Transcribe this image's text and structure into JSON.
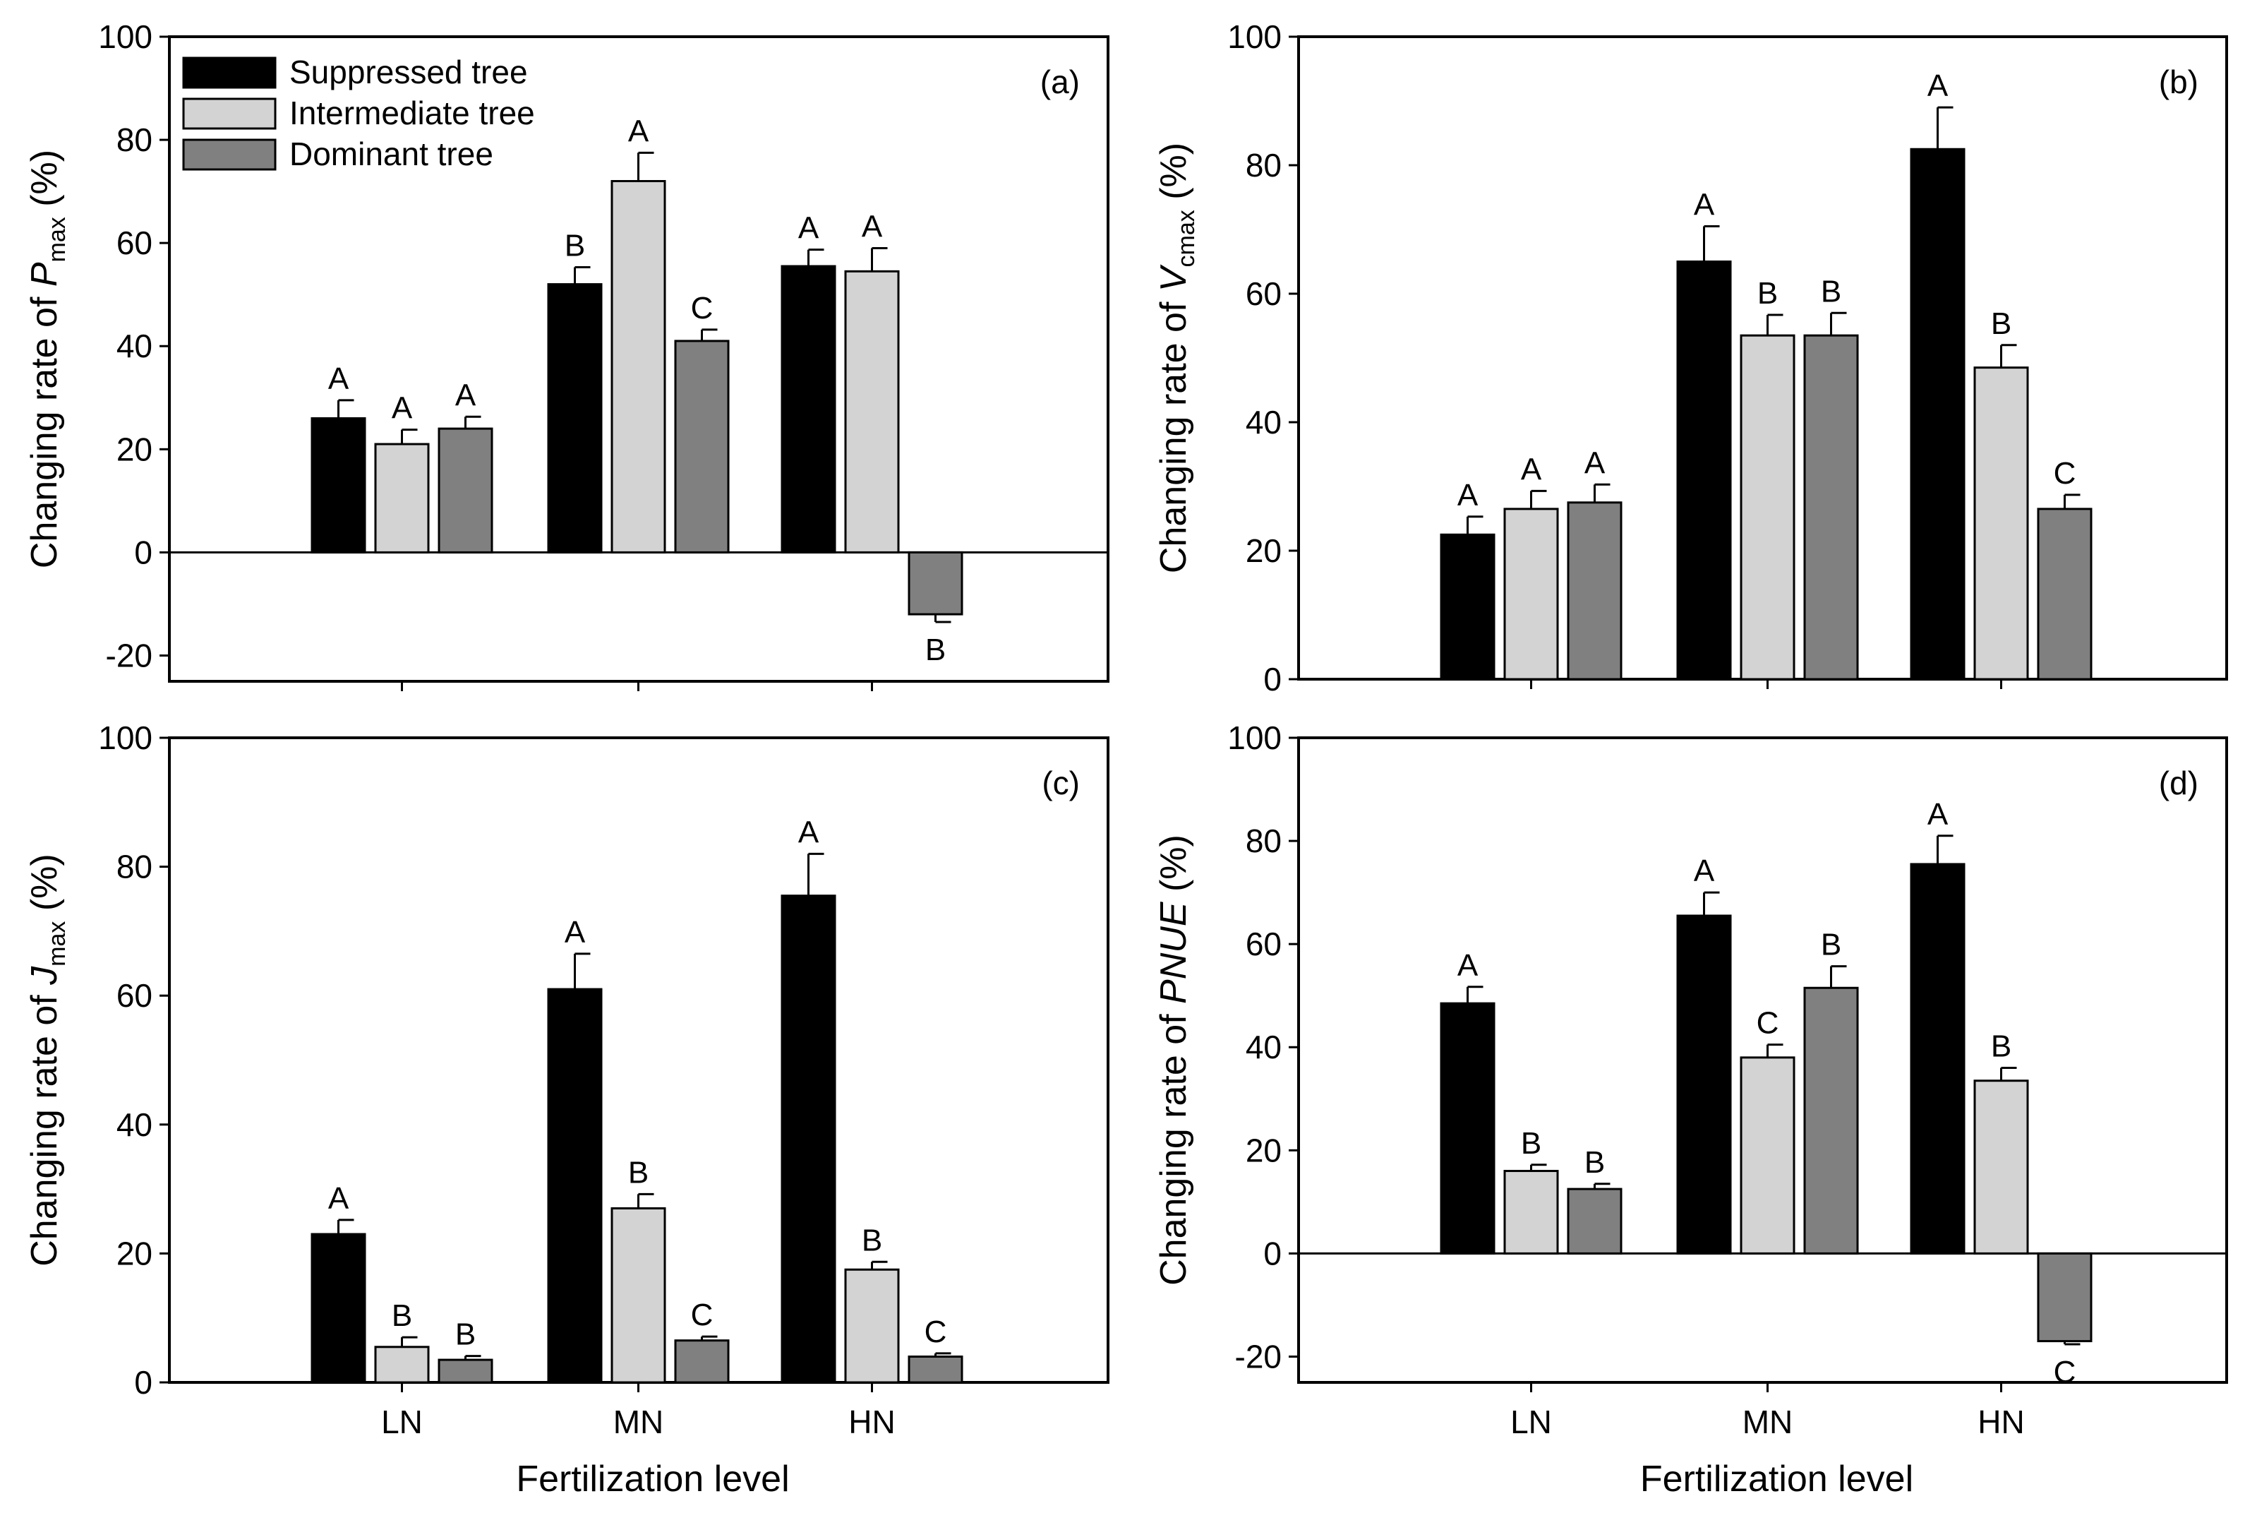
{
  "figure": {
    "x_axis_label": "Fertilization level",
    "legend": [
      {
        "name": "Suppressed tree",
        "color": "#000000"
      },
      {
        "name": "Intermediate tree",
        "color": "#d3d3d3"
      },
      {
        "name": "Dominant tree",
        "color": "#808080"
      }
    ]
  },
  "chart_data": [
    {
      "type": "bar",
      "panel": "(a)",
      "ylabel_prefix": "Changing rate of ",
      "ylabel_var": "P",
      "ylabel_sub": "max",
      "ylabel_suffix": " (%)",
      "categories": [
        "LN",
        "MN",
        "HN"
      ],
      "ylim": [
        -25,
        100
      ],
      "yticks": [
        -20,
        0,
        20,
        40,
        60,
        80,
        100
      ],
      "show_xtick_labels": false,
      "series": [
        {
          "name": "Suppressed tree",
          "values": [
            26,
            52,
            55.5
          ],
          "errors": [
            3.5,
            3.3,
            3.2
          ],
          "letters": [
            "A",
            "B",
            "A"
          ]
        },
        {
          "name": "Intermediate tree",
          "values": [
            21,
            72,
            54.5
          ],
          "errors": [
            2.8,
            5.5,
            4.5
          ],
          "letters": [
            "A",
            "A",
            "A"
          ]
        },
        {
          "name": "Dominant tree",
          "values": [
            24,
            41,
            -12
          ],
          "errors": [
            2.3,
            2.2,
            1.5
          ],
          "letters": [
            "A",
            "C",
            "B"
          ]
        }
      ]
    },
    {
      "type": "bar",
      "panel": "(b)",
      "ylabel_prefix": "Changing rate of ",
      "ylabel_var": "V",
      "ylabel_sub": "cmax",
      "ylabel_suffix": " (%)",
      "categories": [
        "LN",
        "MN",
        "HN"
      ],
      "ylim": [
        0,
        100
      ],
      "yticks": [
        0,
        20,
        40,
        60,
        80,
        100
      ],
      "show_xtick_labels": false,
      "series": [
        {
          "name": "Suppressed tree",
          "values": [
            22.5,
            65,
            82.5
          ],
          "errors": [
            2.8,
            5.5,
            6.5
          ],
          "letters": [
            "A",
            "A",
            "A"
          ]
        },
        {
          "name": "Intermediate tree",
          "values": [
            26.5,
            53.5,
            48.5
          ],
          "errors": [
            2.8,
            3.2,
            3.5
          ],
          "letters": [
            "A",
            "B",
            "B"
          ]
        },
        {
          "name": "Dominant tree",
          "values": [
            27.5,
            53.5,
            26.5
          ],
          "errors": [
            2.8,
            3.5,
            2.2
          ],
          "letters": [
            "A",
            "B",
            "C"
          ]
        }
      ]
    },
    {
      "type": "bar",
      "panel": "(c)",
      "ylabel_prefix": "Changing rate of ",
      "ylabel_var": "J",
      "ylabel_sub": "max",
      "ylabel_suffix": " (%)",
      "categories": [
        "LN",
        "MN",
        "HN"
      ],
      "ylim": [
        0,
        100
      ],
      "yticks": [
        0,
        20,
        40,
        60,
        80,
        100
      ],
      "show_xtick_labels": true,
      "series": [
        {
          "name": "Suppressed tree",
          "values": [
            23,
            61,
            75.5
          ],
          "errors": [
            2.2,
            5.5,
            6.5
          ],
          "letters": [
            "A",
            "A",
            "A"
          ]
        },
        {
          "name": "Intermediate tree",
          "values": [
            5.5,
            27,
            17.5
          ],
          "errors": [
            1.5,
            2.2,
            1.2
          ],
          "letters": [
            "B",
            "B",
            "B"
          ]
        },
        {
          "name": "Dominant tree",
          "values": [
            3.5,
            6.5,
            4
          ],
          "errors": [
            0.6,
            0.6,
            0.5
          ],
          "letters": [
            "B",
            "C",
            "C"
          ]
        }
      ]
    },
    {
      "type": "bar",
      "panel": "(d)",
      "ylabel_prefix": "Changing rate of ",
      "ylabel_var": "PNUE",
      "ylabel_sub": "",
      "ylabel_suffix": " (%)",
      "categories": [
        "LN",
        "MN",
        "HN"
      ],
      "ylim": [
        -25,
        100
      ],
      "yticks": [
        -20,
        0,
        20,
        40,
        60,
        80,
        100
      ],
      "show_xtick_labels": true,
      "series": [
        {
          "name": "Suppressed tree",
          "values": [
            48.5,
            65.5,
            75.5
          ],
          "errors": [
            3.2,
            4.5,
            5.5
          ],
          "letters": [
            "A",
            "A",
            "A"
          ]
        },
        {
          "name": "Intermediate tree",
          "values": [
            16,
            38,
            33.5
          ],
          "errors": [
            1.2,
            2.5,
            2.5
          ],
          "letters": [
            "B",
            "C",
            "B"
          ]
        },
        {
          "name": "Dominant tree",
          "values": [
            12.5,
            51.5,
            -17
          ],
          "errors": [
            1.0,
            4.2,
            0.6
          ],
          "letters": [
            "B",
            "B",
            "C"
          ]
        }
      ]
    }
  ]
}
